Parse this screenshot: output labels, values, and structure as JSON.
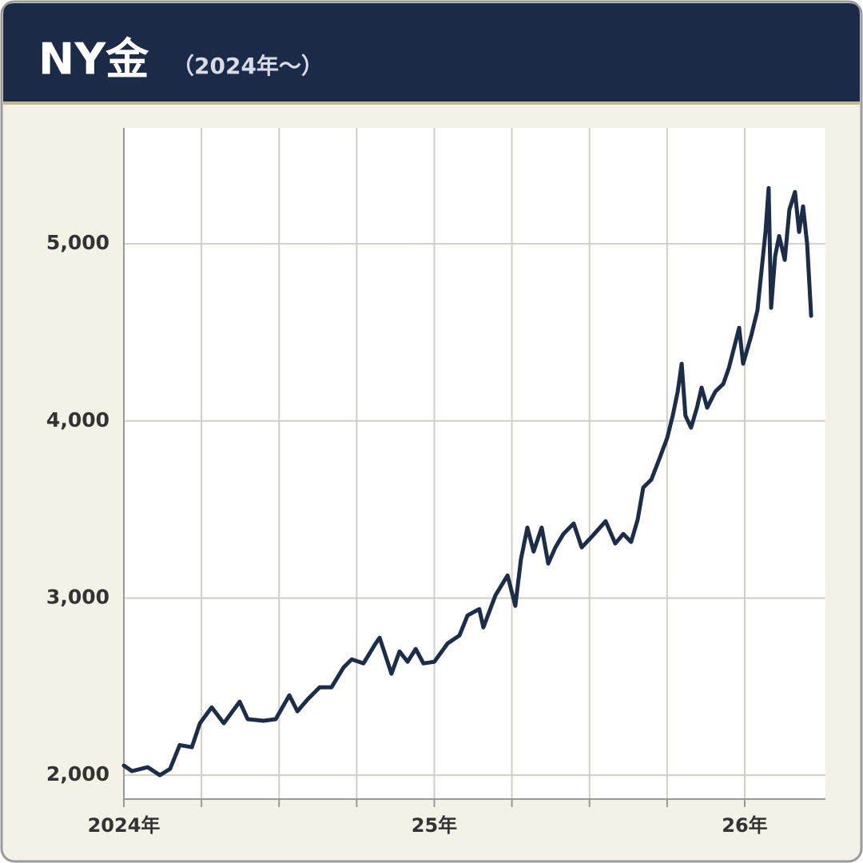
{
  "chart_data": {
    "type": "line",
    "title": "NY金",
    "subtitle": "（2024年～）",
    "color": "#1c2d4a",
    "x": [
      2024.0,
      2024.026,
      2024.077,
      2024.116,
      2024.149,
      2024.18,
      2024.219,
      2024.245,
      2024.283,
      2024.322,
      2024.373,
      2024.399,
      2024.45,
      2024.489,
      2024.533,
      2024.559,
      2024.592,
      2024.631,
      2024.669,
      2024.708,
      2024.734,
      2024.772,
      2024.811,
      2024.824,
      2024.862,
      2024.888,
      2024.914,
      2024.94,
      2024.965,
      2025.0,
      2025.043,
      2025.081,
      2025.107,
      2025.145,
      2025.158,
      2025.197,
      2025.236,
      2025.261,
      2025.279,
      2025.3,
      2025.32,
      2025.346,
      2025.367,
      2025.39,
      2025.416,
      2025.449,
      2025.475,
      2025.506,
      2025.552,
      2025.583,
      2025.609,
      2025.634,
      2025.655,
      2025.673,
      2025.699,
      2025.724,
      2025.75,
      2025.768,
      2025.784,
      2025.797,
      2025.809,
      2025.827,
      2025.846,
      2025.861,
      2025.879,
      2025.905,
      2025.931,
      2025.949,
      2025.969,
      2025.982,
      2025.995,
      2026.021,
      2026.041,
      2026.059,
      2026.067,
      2026.077,
      2026.085,
      2026.098,
      2026.111,
      2026.129,
      2026.144,
      2026.162,
      2026.175,
      2026.188,
      2026.201,
      2026.214
    ],
    "values": [
      2054,
      2023,
      2045,
      2000,
      2036,
      2170,
      2158,
      2293,
      2383,
      2293,
      2415,
      2316,
      2307,
      2316,
      2451,
      2361,
      2428,
      2496,
      2496,
      2609,
      2654,
      2631,
      2744,
      2776,
      2573,
      2699,
      2640,
      2713,
      2631,
      2640,
      2744,
      2789,
      2902,
      2938,
      2834,
      3015,
      3128,
      2956,
      3218,
      3398,
      3263,
      3398,
      3195,
      3286,
      3362,
      3421,
      3286,
      3344,
      3434,
      3308,
      3362,
      3317,
      3443,
      3624,
      3669,
      3782,
      3903,
      4030,
      4165,
      4323,
      4030,
      3962,
      4075,
      4188,
      4075,
      4165,
      4210,
      4300,
      4436,
      4526,
      4323,
      4481,
      4625,
      4932,
      5067,
      5315,
      4639,
      4932,
      5044,
      4909,
      5193,
      5293,
      5067,
      5212,
      5000,
      4594
    ],
    "xlim": [
      2024,
      2026.26
    ],
    "xticks": [
      {
        "value": 2024,
        "label": "2024年"
      },
      {
        "value": 2025,
        "label": "25年"
      },
      {
        "value": 2026,
        "label": "26年"
      }
    ],
    "xminorticks": [
      2024.25,
      2024.5,
      2024.75,
      2025.25,
      2025.5,
      2025.75
    ],
    "ylim": [
      1865,
      5655
    ],
    "yticks": [
      {
        "value": 2000,
        "label": "2,000"
      },
      {
        "value": 3000,
        "label": "3,000"
      },
      {
        "value": 4000,
        "label": "4,000"
      },
      {
        "value": 5000,
        "label": "5,000"
      }
    ],
    "grid": true
  }
}
